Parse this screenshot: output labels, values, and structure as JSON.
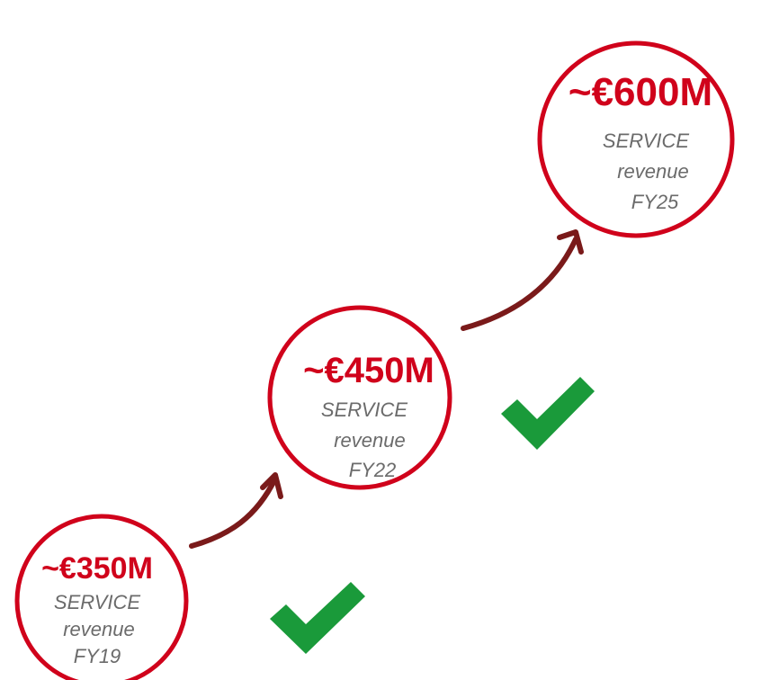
{
  "nodes": [
    {
      "amount": "~€350M",
      "lines": [
        "SERVICE",
        "revenue",
        "FY19"
      ]
    },
    {
      "amount": "~€450M",
      "lines": [
        "SERVICE",
        "revenue",
        "FY22"
      ]
    },
    {
      "amount": "~€600M",
      "lines": [
        "SERVICE",
        "revenue",
        "FY25"
      ]
    }
  ]
}
